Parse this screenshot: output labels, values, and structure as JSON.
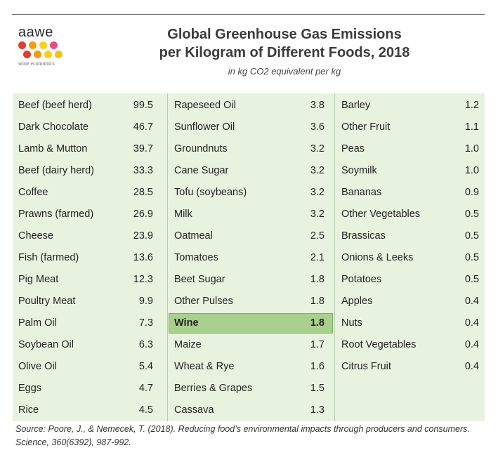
{
  "logo": {
    "wordmark": "aawe",
    "tagline": "wine economics",
    "dot_colors": [
      "#e03c31",
      "#f39c12",
      "#f7d117",
      "#e84a8a",
      "#e03c31",
      "#f39c12",
      "#f7d117",
      "#f1c40f"
    ]
  },
  "chart_data": {
    "type": "table",
    "title": "Global Greenhouse Gas Emissions",
    "title_line2": "per Kilogram of Different Foods, 2018",
    "subtitle": "in kg CO2 equivalent per kg",
    "highlight": "Wine",
    "columns": [
      [
        {
          "food": "Beef (beef herd)",
          "value": "99.5"
        },
        {
          "food": "Dark Chocolate",
          "value": "46.7"
        },
        {
          "food": "Lamb & Mutton",
          "value": "39.7"
        },
        {
          "food": "Beef (dairy herd)",
          "value": "33.3"
        },
        {
          "food": "Coffee",
          "value": "28.5"
        },
        {
          "food": "Prawns (farmed)",
          "value": "26.9"
        },
        {
          "food": "Cheese",
          "value": "23.9"
        },
        {
          "food": "Fish (farmed)",
          "value": "13.6"
        },
        {
          "food": "Pig Meat",
          "value": "12.3"
        },
        {
          "food": "Poultry Meat",
          "value": "9.9"
        },
        {
          "food": "Palm Oil",
          "value": "7.3"
        },
        {
          "food": "Soybean Oil",
          "value": "6.3"
        },
        {
          "food": "Olive Oil",
          "value": "5.4"
        },
        {
          "food": "Eggs",
          "value": "4.7"
        },
        {
          "food": "Rice",
          "value": "4.5"
        }
      ],
      [
        {
          "food": "Rapeseed Oil",
          "value": "3.8"
        },
        {
          "food": "Sunflower Oil",
          "value": "3.6"
        },
        {
          "food": "Groundnuts",
          "value": "3.2"
        },
        {
          "food": "Cane Sugar",
          "value": "3.2"
        },
        {
          "food": "Tofu (soybeans)",
          "value": "3.2"
        },
        {
          "food": "Milk",
          "value": "3.2"
        },
        {
          "food": "Oatmeal",
          "value": "2.5"
        },
        {
          "food": "Tomatoes",
          "value": "2.1"
        },
        {
          "food": "Beet Sugar",
          "value": "1.8"
        },
        {
          "food": "Other Pulses",
          "value": "1.8"
        },
        {
          "food": "Wine",
          "value": "1.8"
        },
        {
          "food": "Maize",
          "value": "1.7"
        },
        {
          "food": "Wheat & Rye",
          "value": "1.6"
        },
        {
          "food": "Berries & Grapes",
          "value": "1.5"
        },
        {
          "food": "Cassava",
          "value": "1.3"
        }
      ],
      [
        {
          "food": "Barley",
          "value": "1.2"
        },
        {
          "food": "Other Fruit",
          "value": "1.1"
        },
        {
          "food": "Peas",
          "value": "1.0"
        },
        {
          "food": "Soymilk",
          "value": "1.0"
        },
        {
          "food": "Bananas",
          "value": "0.9"
        },
        {
          "food": "Other Vegetables",
          "value": "0.5"
        },
        {
          "food": "Brassicas",
          "value": "0.5"
        },
        {
          "food": "Onions & Leeks",
          "value": "0.5"
        },
        {
          "food": "Potatoes",
          "value": "0.5"
        },
        {
          "food": "Apples",
          "value": "0.4"
        },
        {
          "food": "Nuts",
          "value": "0.4"
        },
        {
          "food": "Root Vegetables",
          "value": "0.4"
        },
        {
          "food": "Citrus Fruit",
          "value": "0.4"
        }
      ]
    ],
    "source": "Source: Poore, J., & Nemecek, T. (2018). Reducing food’s environmental impacts through producers and consumers. Science, 360(6392), 987-992."
  }
}
